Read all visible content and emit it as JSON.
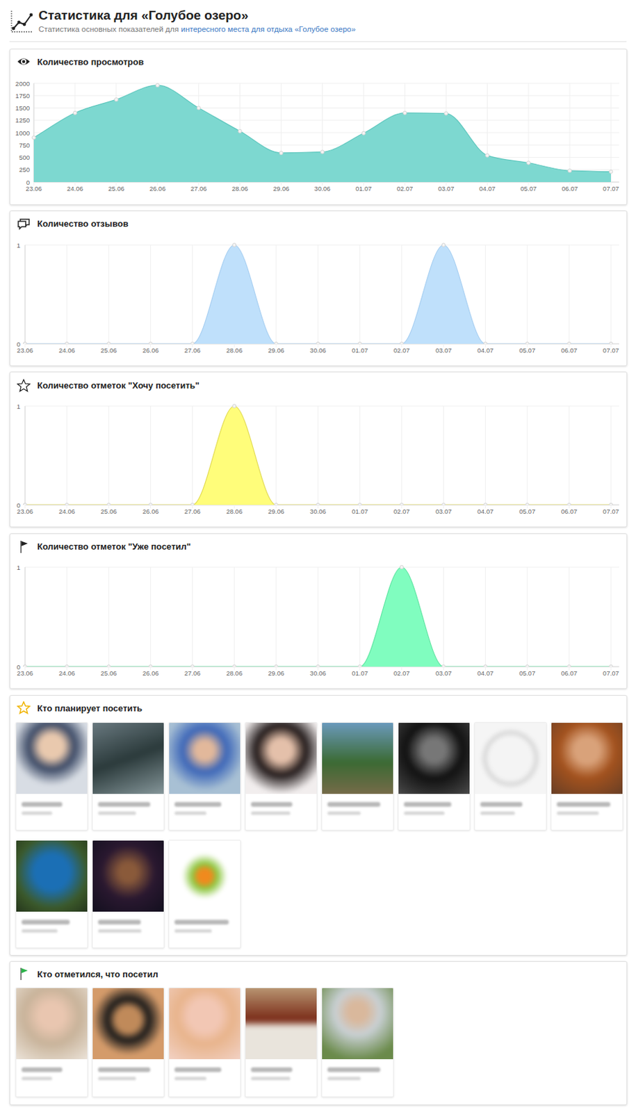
{
  "header": {
    "title": "Статистика для «Голубое озеро»",
    "subtitle": "Статистика основных показателей для",
    "subtitle_link": "интересного места для отдыха «Голубое озеро»"
  },
  "chart_data": [
    {
      "type": "area",
      "title": "Количество просмотров",
      "x": [
        "23.06",
        "24.06",
        "25.06",
        "26.06",
        "27.06",
        "28.06",
        "29.06",
        "30.06",
        "01.07",
        "02.07",
        "03.07",
        "04.07",
        "05.07",
        "06.07",
        "07.07"
      ],
      "values": [
        900,
        1400,
        1670,
        1960,
        1500,
        1030,
        590,
        610,
        990,
        1400,
        1390,
        540,
        390,
        230,
        210
      ],
      "color": "#7dd8d0",
      "ylim": [
        0,
        2000
      ],
      "yticks": [
        0,
        250,
        500,
        750,
        1000,
        1250,
        1500,
        1750,
        2000
      ],
      "grid": true,
      "marker": "circle"
    },
    {
      "type": "area",
      "title": "Количество отзывов",
      "x": [
        "23.06",
        "24.06",
        "25.06",
        "26.06",
        "27.06",
        "28.06",
        "29.06",
        "30.06",
        "01.07",
        "02.07",
        "03.07",
        "04.07",
        "05.07",
        "06.07",
        "07.07"
      ],
      "values": [
        0,
        0,
        0,
        0,
        0,
        1,
        0,
        0,
        0,
        0,
        1,
        0,
        0,
        0,
        0
      ],
      "color": "#bfe0fb",
      "ylim": [
        0,
        1
      ],
      "yticks": [
        0,
        1
      ],
      "grid": true,
      "marker": "circle"
    },
    {
      "type": "area",
      "title": "Количество отметок \"Хочу посетить\"",
      "x": [
        "23.06",
        "24.06",
        "25.06",
        "26.06",
        "27.06",
        "28.06",
        "29.06",
        "30.06",
        "01.07",
        "02.07",
        "03.07",
        "04.07",
        "05.07",
        "06.07",
        "07.07"
      ],
      "values": [
        0,
        0,
        0,
        0,
        0,
        1,
        0,
        0,
        0,
        0,
        0,
        0,
        0,
        0,
        0
      ],
      "color": "#fffd7a",
      "ylim": [
        0,
        1
      ],
      "yticks": [
        0,
        1
      ],
      "grid": true,
      "marker": "circle"
    },
    {
      "type": "area",
      "title": "Количество отметок \"Уже посетил\"",
      "x": [
        "23.06",
        "24.06",
        "25.06",
        "26.06",
        "27.06",
        "28.06",
        "29.06",
        "30.06",
        "01.07",
        "02.07",
        "03.07",
        "04.07",
        "05.07",
        "06.07",
        "07.07"
      ],
      "values": [
        0,
        0,
        0,
        0,
        0,
        0,
        0,
        0,
        0,
        1,
        0,
        0,
        0,
        0,
        0
      ],
      "color": "#80fdbf",
      "ylim": [
        0,
        1
      ],
      "yticks": [
        0,
        1
      ],
      "grid": true,
      "marker": "circle"
    }
  ],
  "galleries": [
    {
      "title": "Кто планирует посетить"
    },
    {
      "title": "Кто отметился, что посетил"
    }
  ]
}
